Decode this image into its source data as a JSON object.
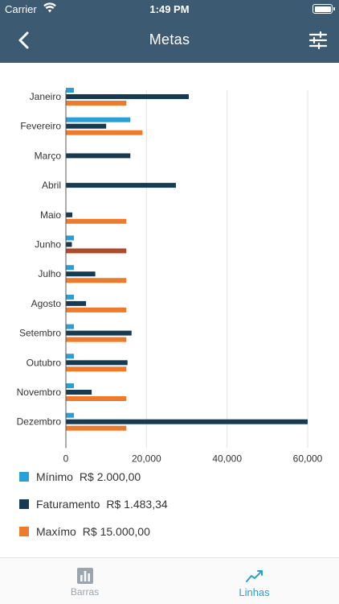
{
  "status": {
    "carrier": "Carrier",
    "time": "1:49 PM"
  },
  "nav": {
    "title": "Metas",
    "back_icon": "chevron-left-icon",
    "filter_icon": "sliders-icon"
  },
  "chart_data": {
    "type": "bar",
    "orientation": "horizontal",
    "categories": [
      "Janeiro",
      "Fevereiro",
      "Março",
      "Abril",
      "Maio",
      "Junho",
      "Julho",
      "Agosto",
      "Setembro",
      "Outubro",
      "Novembro",
      "Dezembro"
    ],
    "series": [
      {
        "name": "Mínimo",
        "color": "#2a9fd6",
        "values": [
          2000,
          16000,
          0,
          0,
          0,
          2000,
          2000,
          2000,
          2000,
          2000,
          2000,
          2000
        ]
      },
      {
        "name": "Faturamento",
        "color": "#163a52",
        "values": [
          30500,
          10000,
          16000,
          27300,
          1600,
          1483.34,
          7300,
          5000,
          16300,
          15300,
          6400,
          60000
        ]
      },
      {
        "name": "Maxímo",
        "color": "#f07a2b",
        "values": [
          15000,
          19000,
          0,
          0,
          15000,
          15000,
          15000,
          15000,
          15000,
          15000,
          15000,
          15000
        ]
      }
    ],
    "highlight": {
      "category_index": 5,
      "series_index": 2,
      "color": "#b0482a"
    },
    "xlim": [
      0,
      62000
    ],
    "xticks": [
      "0",
      "20,000",
      "40,000",
      "60,000"
    ],
    "xtick_values": [
      0,
      20000,
      40000,
      60000
    ],
    "grid": "vertical"
  },
  "legend": [
    {
      "name": "Mínimo",
      "value": "R$ 2.000,00",
      "color": "#2a9fd6"
    },
    {
      "name": "Faturamento",
      "value": "R$ 1.483,34",
      "color": "#163a52"
    },
    {
      "name": "Maxímo",
      "value": "R$ 15.000,00",
      "color": "#f07a2b"
    }
  ],
  "tabs": [
    {
      "label": "Barras",
      "icon": "bar-chart-icon",
      "active": false
    },
    {
      "label": "Linhas",
      "icon": "line-chart-icon",
      "active": true
    }
  ]
}
